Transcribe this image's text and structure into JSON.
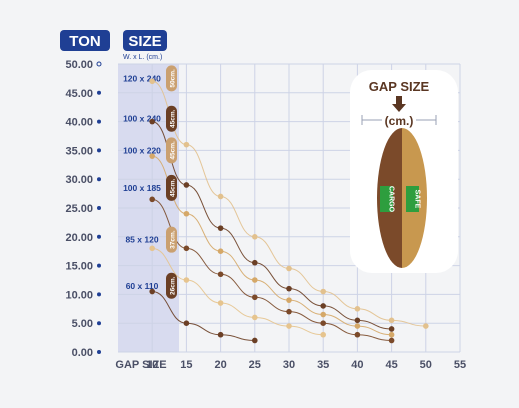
{
  "header": {
    "ton_badge": "TON",
    "size_badge": "SIZE",
    "size_sub": "W. x L. (cm.)"
  },
  "size_rows": [
    {
      "label": "120 x 240",
      "tag": "50cm.",
      "y": 47.5
    },
    {
      "label": "100 x 240",
      "tag": "45cm.",
      "y": 40.5
    },
    {
      "label": "100 x 220",
      "tag": "45cm.",
      "y": 35.0
    },
    {
      "label": "100 x 185",
      "tag": "45cm.",
      "y": 28.5
    },
    {
      "label": "85 x 120",
      "tag": "37cm.",
      "y": 19.5
    },
    {
      "label": "60 x 110",
      "tag": "26cm.",
      "y": 11.5
    }
  ],
  "colors": {
    "navy": "#1f3f94",
    "band": "#d8dbef",
    "pill_dark": "#6b3f25",
    "pill_light": "#caa070",
    "grid": "#cdd3e6",
    "axis_text": "#4a4f66"
  },
  "inset": {
    "title": "GAP SIZE",
    "unit": "(cm.)",
    "tag_left": "CARGO",
    "tag_right": "SAFE"
  },
  "chart_data": {
    "type": "line",
    "xlabel": "GAP SIZE",
    "ylabel": "",
    "x_ticks": [
      10,
      15,
      20,
      25,
      30,
      35,
      40,
      45,
      50,
      55
    ],
    "y_ticks": [
      "0.00",
      "5.00",
      "10.00",
      "15.00",
      "20.00",
      "25.00",
      "30.00",
      "35.00",
      "40.00",
      "45.00",
      "50.00"
    ],
    "xlim": [
      5,
      55
    ],
    "ylim": [
      0,
      50
    ],
    "grid": true,
    "series": [
      {
        "color": "#e2c18e",
        "points": [
          [
            10,
            47.0
          ],
          [
            15,
            36.0
          ],
          [
            20,
            27.0
          ],
          [
            25,
            20.0
          ],
          [
            30,
            14.5
          ],
          [
            35,
            10.5
          ],
          [
            40,
            7.5
          ],
          [
            45,
            5.5
          ],
          [
            50,
            4.5
          ]
        ]
      },
      {
        "color": "#6b3f25",
        "points": [
          [
            10,
            40.0
          ],
          [
            15,
            29.0
          ],
          [
            20,
            21.5
          ],
          [
            25,
            15.5
          ],
          [
            30,
            11.0
          ],
          [
            35,
            8.0
          ],
          [
            40,
            5.5
          ],
          [
            45,
            4.0
          ]
        ]
      },
      {
        "color": "#d5a868",
        "points": [
          [
            10,
            34.0
          ],
          [
            15,
            24.0
          ],
          [
            20,
            17.5
          ],
          [
            25,
            12.5
          ],
          [
            30,
            9.0
          ],
          [
            35,
            6.5
          ],
          [
            40,
            4.5
          ],
          [
            45,
            3.0
          ]
        ]
      },
      {
        "color": "#7b4a2a",
        "points": [
          [
            10,
            26.5
          ],
          [
            15,
            18.0
          ],
          [
            20,
            13.5
          ],
          [
            25,
            9.5
          ],
          [
            30,
            7.0
          ],
          [
            35,
            5.0
          ],
          [
            40,
            3.0
          ],
          [
            45,
            2.0
          ]
        ]
      },
      {
        "color": "#e6c48e",
        "points": [
          [
            10,
            18.0
          ],
          [
            15,
            12.5
          ],
          [
            20,
            8.5
          ],
          [
            25,
            6.0
          ],
          [
            30,
            4.5
          ],
          [
            35,
            3.0
          ]
        ]
      },
      {
        "color": "#6b3f25",
        "points": [
          [
            10,
            10.5
          ],
          [
            15,
            5.0
          ],
          [
            20,
            3.0
          ],
          [
            25,
            2.0
          ]
        ]
      }
    ]
  }
}
